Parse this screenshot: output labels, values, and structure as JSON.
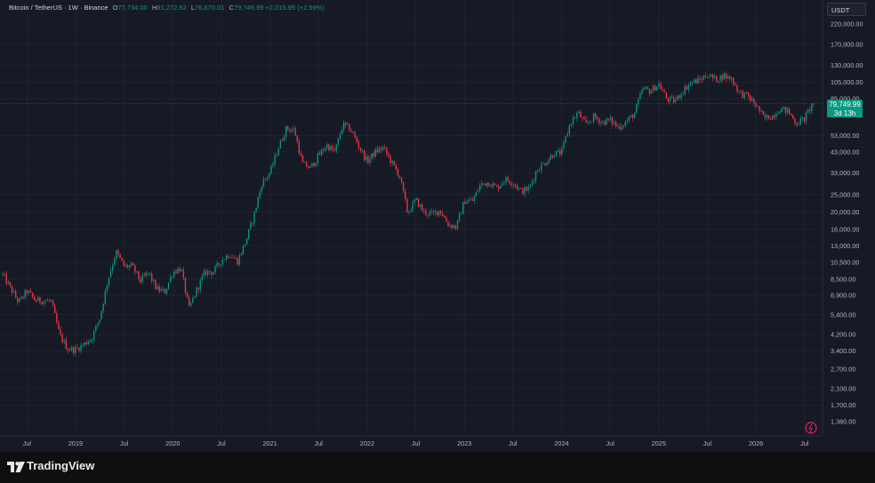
{
  "header": {
    "symbol": "Bitcoin / TetherUS · 1W · Binance",
    "open_label": "O",
    "open": "77,734.00",
    "high_label": "H",
    "high": "81,272.62",
    "low_label": "L",
    "low": "76,670.01",
    "close_label": "C",
    "close": "79,749.99",
    "change": "+2,015.99 (+2.59%)"
  },
  "currency": "USDT",
  "price_tag": {
    "price": "79,749.99",
    "countdown": "3d 13h"
  },
  "brand": {
    "name": "TradingView"
  },
  "colors": {
    "up": "#089981",
    "down": "#f23645",
    "background": "#161a25",
    "accent": "#e91e63"
  },
  "chart_data": {
    "type": "candlestick",
    "y_scale": "log",
    "y_ticks": [
      "220,000.00",
      "170,000.00",
      "130,000.00",
      "105,000.00",
      "85,000.00",
      "53,000.00",
      "43,000.00",
      "33,000.00",
      "25,000.00",
      "20,000.00",
      "16,000.00",
      "13,000.00",
      "10,500.00",
      "8,500.00",
      "6,900.00",
      "5,400.00",
      "4,200.00",
      "3,400.00",
      "2,700.00",
      "2,100.00",
      "1,700.00",
      "1,380.00"
    ],
    "y_tick_values": [
      220000,
      170000,
      130000,
      105000,
      85000,
      53000,
      43000,
      33000,
      25000,
      20000,
      16000,
      13000,
      10500,
      8500,
      6900,
      5400,
      4200,
      3400,
      2700,
      2100,
      1700,
      1380
    ],
    "x_ticks": [
      "Jul",
      "2019",
      "Jul",
      "2020",
      "Jul",
      "2021",
      "Jul",
      "2022",
      "Jul",
      "2023",
      "Jul",
      "2024",
      "Jul",
      "2025",
      "Jul",
      "2026",
      "Jul"
    ],
    "x_tick_dates": [
      "2018-07",
      "2019-01",
      "2019-07",
      "2020-01",
      "2020-07",
      "2021-01",
      "2021-07",
      "2022-01",
      "2022-07",
      "2023-01",
      "2023-07",
      "2024-01",
      "2024-07",
      "2025-01",
      "2025-07",
      "2026-01",
      "2026-07"
    ],
    "current_price": 79749.99,
    "anchors": [
      [
        "2018-04",
        9000
      ],
      [
        "2018-05",
        7500
      ],
      [
        "2018-06",
        6300
      ],
      [
        "2018-07",
        7300
      ],
      [
        "2018-08",
        6500
      ],
      [
        "2018-10",
        6400
      ],
      [
        "2018-11",
        4200
      ],
      [
        "2018-12",
        3500
      ],
      [
        "2019-01",
        3450
      ],
      [
        "2019-02",
        3700
      ],
      [
        "2019-03",
        4000
      ],
      [
        "2019-04",
        5200
      ],
      [
        "2019-05",
        8500
      ],
      [
        "2019-06",
        12000
      ],
      [
        "2019-07",
        10000
      ],
      [
        "2019-08",
        10000
      ],
      [
        "2019-09",
        8300
      ],
      [
        "2019-10",
        9200
      ],
      [
        "2019-11",
        7500
      ],
      [
        "2019-12",
        7200
      ],
      [
        "2020-01",
        9300
      ],
      [
        "2020-02",
        9800
      ],
      [
        "2020-03",
        5800
      ],
      [
        "2020-04",
        7500
      ],
      [
        "2020-05",
        9300
      ],
      [
        "2020-06",
        9300
      ],
      [
        "2020-07",
        10800
      ],
      [
        "2020-08",
        11700
      ],
      [
        "2020-09",
        10700
      ],
      [
        "2020-10",
        13700
      ],
      [
        "2020-11",
        19000
      ],
      [
        "2020-12",
        28900
      ],
      [
        "2021-01",
        33000
      ],
      [
        "2021-02",
        45000
      ],
      [
        "2021-03",
        58000
      ],
      [
        "2021-04",
        57000
      ],
      [
        "2021-05",
        37000
      ],
      [
        "2021-06",
        35000
      ],
      [
        "2021-07",
        41000
      ],
      [
        "2021-08",
        47000
      ],
      [
        "2021-09",
        43000
      ],
      [
        "2021-10",
        61000
      ],
      [
        "2021-11",
        57000
      ],
      [
        "2021-12",
        46000
      ],
      [
        "2022-01",
        38000
      ],
      [
        "2022-02",
        43000
      ],
      [
        "2022-03",
        45500
      ],
      [
        "2022-04",
        37600
      ],
      [
        "2022-05",
        31800
      ],
      [
        "2022-06",
        19800
      ],
      [
        "2022-07",
        23300
      ],
      [
        "2022-08",
        20000
      ],
      [
        "2022-09",
        19400
      ],
      [
        "2022-10",
        20500
      ],
      [
        "2022-11",
        17100
      ],
      [
        "2022-12",
        16500
      ],
      [
        "2023-01",
        23100
      ],
      [
        "2023-02",
        23100
      ],
      [
        "2023-03",
        28400
      ],
      [
        "2023-04",
        29200
      ],
      [
        "2023-05",
        27200
      ],
      [
        "2023-06",
        30400
      ],
      [
        "2023-07",
        29200
      ],
      [
        "2023-08",
        26000
      ],
      [
        "2023-09",
        27000
      ],
      [
        "2023-10",
        34600
      ],
      [
        "2023-11",
        37700
      ],
      [
        "2023-12",
        42200
      ],
      [
        "2024-01",
        42500
      ],
      [
        "2024-02",
        61100
      ],
      [
        "2024-03",
        71300
      ],
      [
        "2024-04",
        60600
      ],
      [
        "2024-05",
        67500
      ],
      [
        "2024-06",
        62700
      ],
      [
        "2024-07",
        64600
      ],
      [
        "2024-08",
        58900
      ],
      [
        "2024-09",
        63300
      ],
      [
        "2024-10",
        70200
      ],
      [
        "2024-11",
        96400
      ],
      [
        "2024-12",
        93400
      ],
      [
        "2025-01",
        102400
      ],
      [
        "2025-02",
        84300
      ],
      [
        "2025-03",
        82500
      ],
      [
        "2025-04",
        94200
      ],
      [
        "2025-05",
        104600
      ],
      [
        "2025-06",
        107100
      ],
      [
        "2025-07",
        115700
      ],
      [
        "2025-08",
        108200
      ],
      [
        "2025-09",
        114000
      ],
      [
        "2025-10",
        109500
      ],
      [
        "2025-11",
        91000
      ],
      [
        "2025-12",
        87500
      ],
      [
        "2026-01",
        78000
      ],
      [
        "2026-02",
        66000
      ],
      [
        "2026-03",
        68000
      ],
      [
        "2026-04",
        75000
      ],
      [
        "2026-05",
        72000
      ],
      [
        "2026-06",
        62000
      ],
      [
        "2026-07",
        66000
      ],
      [
        "2026-08",
        79750
      ]
    ]
  }
}
